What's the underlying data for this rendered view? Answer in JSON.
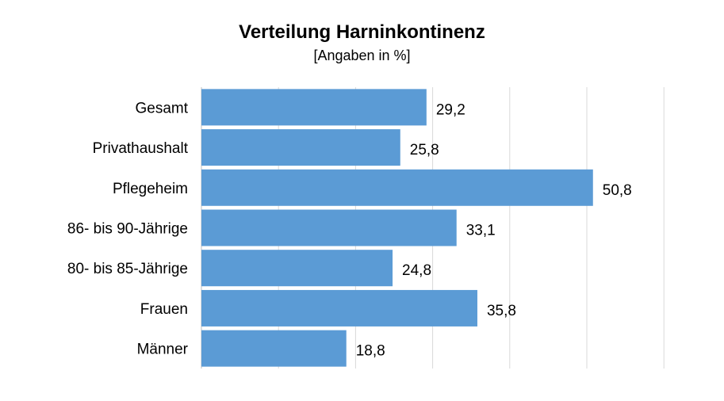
{
  "chart_data": {
    "type": "bar",
    "orientation": "horizontal",
    "title": "Verteilung Harninkontinenz",
    "subtitle": "[Angaben in %]",
    "categories": [
      "Gesamt",
      "Privathaushalt",
      "Pflegeheim",
      "86- bis 90-Jährige",
      "80- bis 85-Jährige",
      "Frauen",
      "Männer"
    ],
    "values": [
      29.2,
      25.8,
      50.8,
      33.1,
      24.8,
      35.8,
      18.8
    ],
    "value_labels": [
      "29,2",
      "25,8",
      "50,8",
      "33,1",
      "24,8",
      "35,8",
      "18,8"
    ],
    "xlim": [
      0,
      60
    ],
    "xgrid_step": 10,
    "grid": true,
    "legend": "none",
    "bar_color": "#5b9bd5",
    "grid_color": "#d9d9d9"
  }
}
